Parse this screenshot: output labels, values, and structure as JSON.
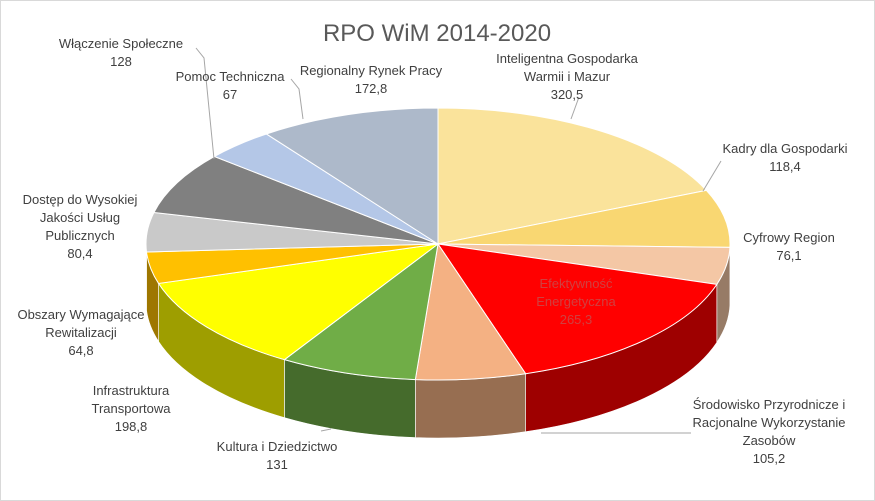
{
  "chart_data": {
    "type": "pie",
    "style": "3d",
    "title": "RPO WiM 2014-2020",
    "legend": "none",
    "slices": [
      {
        "label": "Inteligentna Gospodarka Warmii i Mazur",
        "label_lines": [
          "Inteligentna Gospodarka",
          "Warmii i Mazur"
        ],
        "value": 320.5,
        "value_text": "320,5",
        "color": "#fae39b"
      },
      {
        "label": "Kadry dla Gospodarki",
        "label_lines": [
          "Kadry dla Gospodarki"
        ],
        "value": 118.4,
        "value_text": "118,4",
        "color": "#f9d772"
      },
      {
        "label": "Cyfrowy Region",
        "label_lines": [
          "Cyfrowy Region"
        ],
        "value": 76.1,
        "value_text": "76,1",
        "color": "#f4c7a5"
      },
      {
        "label": "Efektywność Energetyczna",
        "label_lines": [
          "Efektywność",
          "Energetyczna"
        ],
        "value": 265.3,
        "value_text": "265,3",
        "color": "#ff0000"
      },
      {
        "label": "Środowisko Przyrodnicze i Racjonalne Wykorzystanie Zasobów",
        "label_lines": [
          "Środowisko Przyrodnicze i",
          "Racjonalne Wykorzystanie",
          "Zasobów"
        ],
        "value": 105.2,
        "value_text": "105,2",
        "color": "#f4b183"
      },
      {
        "label": "Kultura i Dziedzictwo",
        "label_lines": [
          "Kultura i Dziedzictwo"
        ],
        "value": 131,
        "value_text": "131",
        "color": "#70ad47"
      },
      {
        "label": "Infrastruktura Transportowa",
        "label_lines": [
          "Infrastruktura",
          "Transportowa"
        ],
        "value": 198.8,
        "value_text": "198,8",
        "color": "#ffff00"
      },
      {
        "label": "Obszary Wymagające Rewitalizacji",
        "label_lines": [
          "Obszary Wymagające",
          "Rewitalizacji"
        ],
        "value": 64.8,
        "value_text": "64,8",
        "color": "#ffc000"
      },
      {
        "label": "Dostęp do Wysokiej Jakości Usług Publicznych",
        "label_lines": [
          "Dostęp do Wysokiej",
          "Jakości Usług",
          "Publicznych"
        ],
        "value": 80.4,
        "value_text": "80,4",
        "color": "#c9c9c9"
      },
      {
        "label": "Włączenie Społeczne",
        "label_lines": [
          "Włączenie Społeczne"
        ],
        "value": 128,
        "value_text": "128",
        "color": "#808080"
      },
      {
        "label": "Pomoc Techniczna",
        "label_lines": [
          "Pomoc Techniczna"
        ],
        "value": 67,
        "value_text": "67",
        "color": "#b4c7e7"
      },
      {
        "label": "Regionalny Rynek Pracy",
        "label_lines": [
          "Regionalny Rynek Pracy"
        ],
        "value": 172.8,
        "value_text": "172,8",
        "color": "#adb9ca"
      }
    ]
  }
}
